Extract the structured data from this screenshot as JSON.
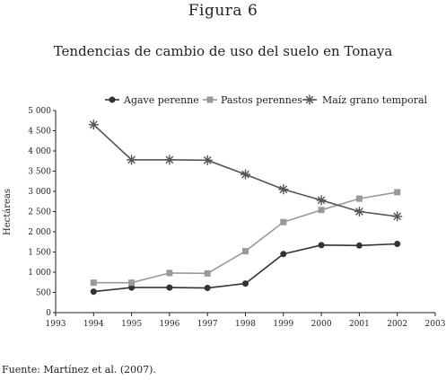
{
  "figure_label": "Figura 6",
  "source_note": "Fuente: Martínez et al. (2007).",
  "chart_data": {
    "type": "line",
    "title": "Tendencias de cambio de uso del suelo en Tonaya",
    "xlabel": "",
    "ylabel": "Hectáreas",
    "xlim": [
      1993,
      2003
    ],
    "ylim": [
      0,
      5000
    ],
    "x_ticks": [
      "1993",
      "1994",
      "1995",
      "1996",
      "1997",
      "1998",
      "1999",
      "2000",
      "2001",
      "2002",
      "2003"
    ],
    "y_ticks": [
      "0",
      "500",
      "1 000",
      "1 500",
      "2 000",
      "2 500",
      "3 000",
      "3 500",
      "4 000",
      "4 500",
      "5 000"
    ],
    "x": [
      1994,
      1995,
      1996,
      1997,
      1998,
      1999,
      2000,
      2001,
      2002
    ],
    "legend_position": "top",
    "grid": false,
    "series": [
      {
        "name": "Agave perenne",
        "marker": "circle",
        "color": "#333333",
        "values": [
          520,
          620,
          620,
          610,
          720,
          1450,
          1670,
          1660,
          1700
        ]
      },
      {
        "name": "Pastos perennes",
        "marker": "square",
        "color": "#999999",
        "values": [
          740,
          740,
          980,
          970,
          1520,
          2240,
          2540,
          2820,
          2980
        ]
      },
      {
        "name": "Maíz grano temporal",
        "marker": "asterisk",
        "color": "#555555",
        "values": [
          4650,
          3780,
          3780,
          3770,
          3420,
          3050,
          2780,
          2500,
          2380
        ]
      }
    ]
  }
}
